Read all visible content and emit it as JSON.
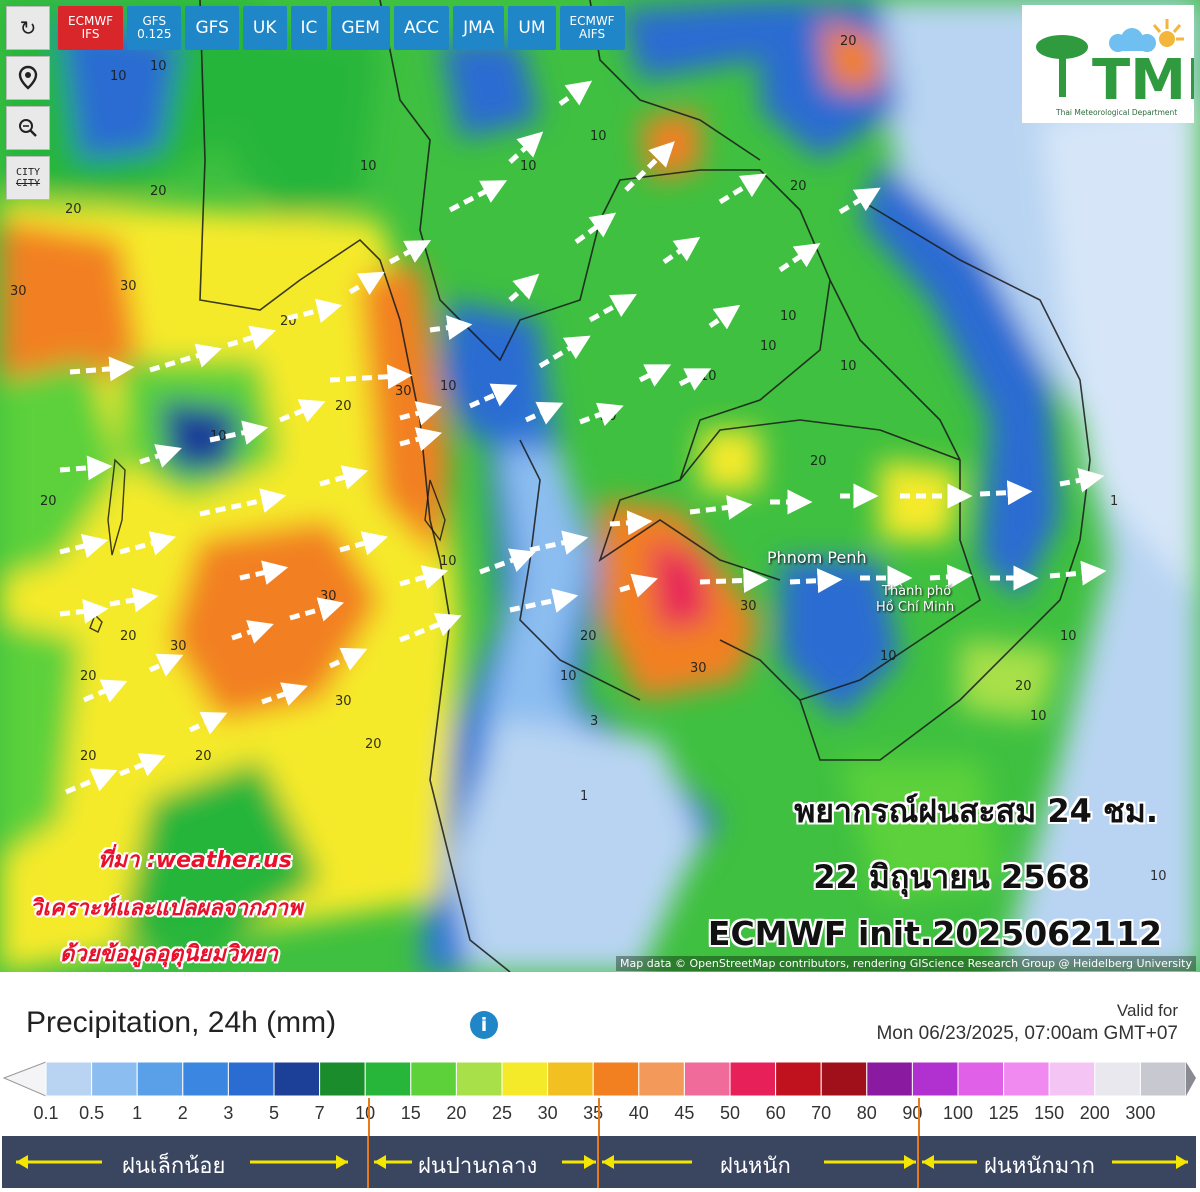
{
  "toolbar": {
    "refresh_icon": "refresh-icon",
    "location_icon": "location-pin-icon",
    "zoom_icon": "zoom-icon",
    "city_label_1": "CITY",
    "city_label_2": "CITY"
  },
  "models": [
    {
      "label": "ECMWF",
      "sub": "IFS",
      "active": true
    },
    {
      "label": "GFS",
      "sub": "0.125",
      "active": false
    },
    {
      "label": "GFS",
      "sub": "",
      "active": false
    },
    {
      "label": "UK",
      "sub": "",
      "active": false
    },
    {
      "label": "IC",
      "sub": "",
      "active": false
    },
    {
      "label": "GEM",
      "sub": "",
      "active": false
    },
    {
      "label": "ACC",
      "sub": "",
      "active": false
    },
    {
      "label": "JMA",
      "sub": "",
      "active": false
    },
    {
      "label": "UM",
      "sub": "",
      "active": false
    },
    {
      "label": "ECMWF",
      "sub": "AIFS",
      "active": false
    }
  ],
  "logo": {
    "text": "TMD",
    "subtitle": "Thai Meteorological Department"
  },
  "overlay": {
    "line1": "พยากรณ์ฝนสะสม 24 ชม.",
    "line2": "22 มิถุนายน 2568",
    "line3": "ECMWF init.2025062112"
  },
  "source": {
    "line1": "ที่มา :weather.us",
    "line2": "วิเคราะห์และแปลผลจากภาพ",
    "line3": "ด้วยข้อมูลอุตุนิยมวิทยา"
  },
  "map": {
    "cities": [
      "Phnom Penh",
      "Thành phố",
      "Hồ Chí Minh"
    ],
    "attribution": "Map data © OpenStreetMap contributors, rendering GIScience Research Group @ Heidelberg University"
  },
  "legend": {
    "title": "Precipitation, 24h (mm)",
    "valid_label": "Valid for",
    "valid_date": "Mon 06/23/2025, 07:00am GMT+07",
    "ticks": [
      "0.1",
      "0.5",
      "1",
      "2",
      "3",
      "5",
      "7",
      "10",
      "15",
      "20",
      "25",
      "30",
      "35",
      "40",
      "45",
      "50",
      "60",
      "70",
      "80",
      "90",
      "100",
      "125",
      "150",
      "200",
      "300"
    ],
    "colors": [
      "#b8d4f2",
      "#8cbdf0",
      "#5aa0e8",
      "#3a86e0",
      "#2a6cd2",
      "#1c3f98",
      "#1a8c2c",
      "#27b53a",
      "#5cd13a",
      "#a8e04a",
      "#f5ea2a",
      "#f2c020",
      "#f28020",
      "#f39a5a",
      "#f06a9a",
      "#e8205a",
      "#c0121e",
      "#a0101a",
      "#8a1aa0",
      "#b030d0",
      "#e060e8",
      "#f08af0",
      "#f4c4f4",
      "#e8e8ee",
      "#c8c8d0"
    ],
    "categories": [
      "ฝนเล็กน้อย",
      "ฝนปานกลาง",
      "ฝนหนัก",
      "ฝนหนักมาก"
    ],
    "category_colors": {
      "bar": "#3a4560",
      "arrow": "#f5e600",
      "divider": "#e87a1a"
    }
  }
}
